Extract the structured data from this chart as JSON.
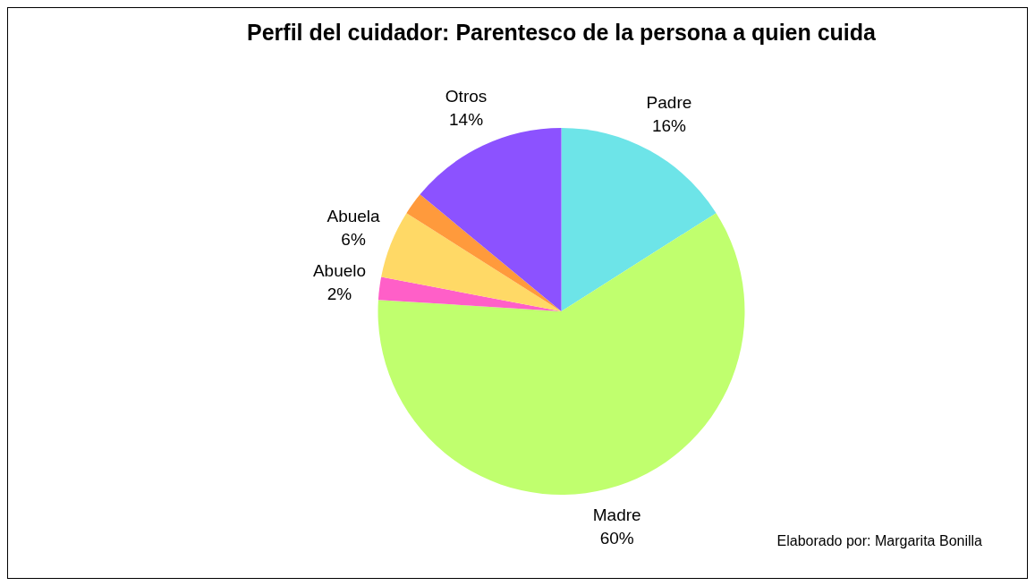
{
  "chart_data": {
    "type": "pie",
    "title": "Perfil del cuidador: Parentesco de la persona a quien cuida",
    "categories": [
      "Padre",
      "Madre",
      "Abuelo",
      "Abuela",
      null,
      "Otros"
    ],
    "values": [
      16,
      60,
      2,
      6,
      2,
      14
    ],
    "value_labels": [
      "16%",
      "60%",
      "2%",
      "6%",
      null,
      "14%"
    ],
    "colors": [
      "#6de4e8",
      "#c0ff6e",
      "#ff5fc8",
      "#ffd966",
      "#ff9a3c",
      "#8c52ff"
    ],
    "annotations": [
      "Elaborado por: Margarita Bonilla"
    ]
  }
}
